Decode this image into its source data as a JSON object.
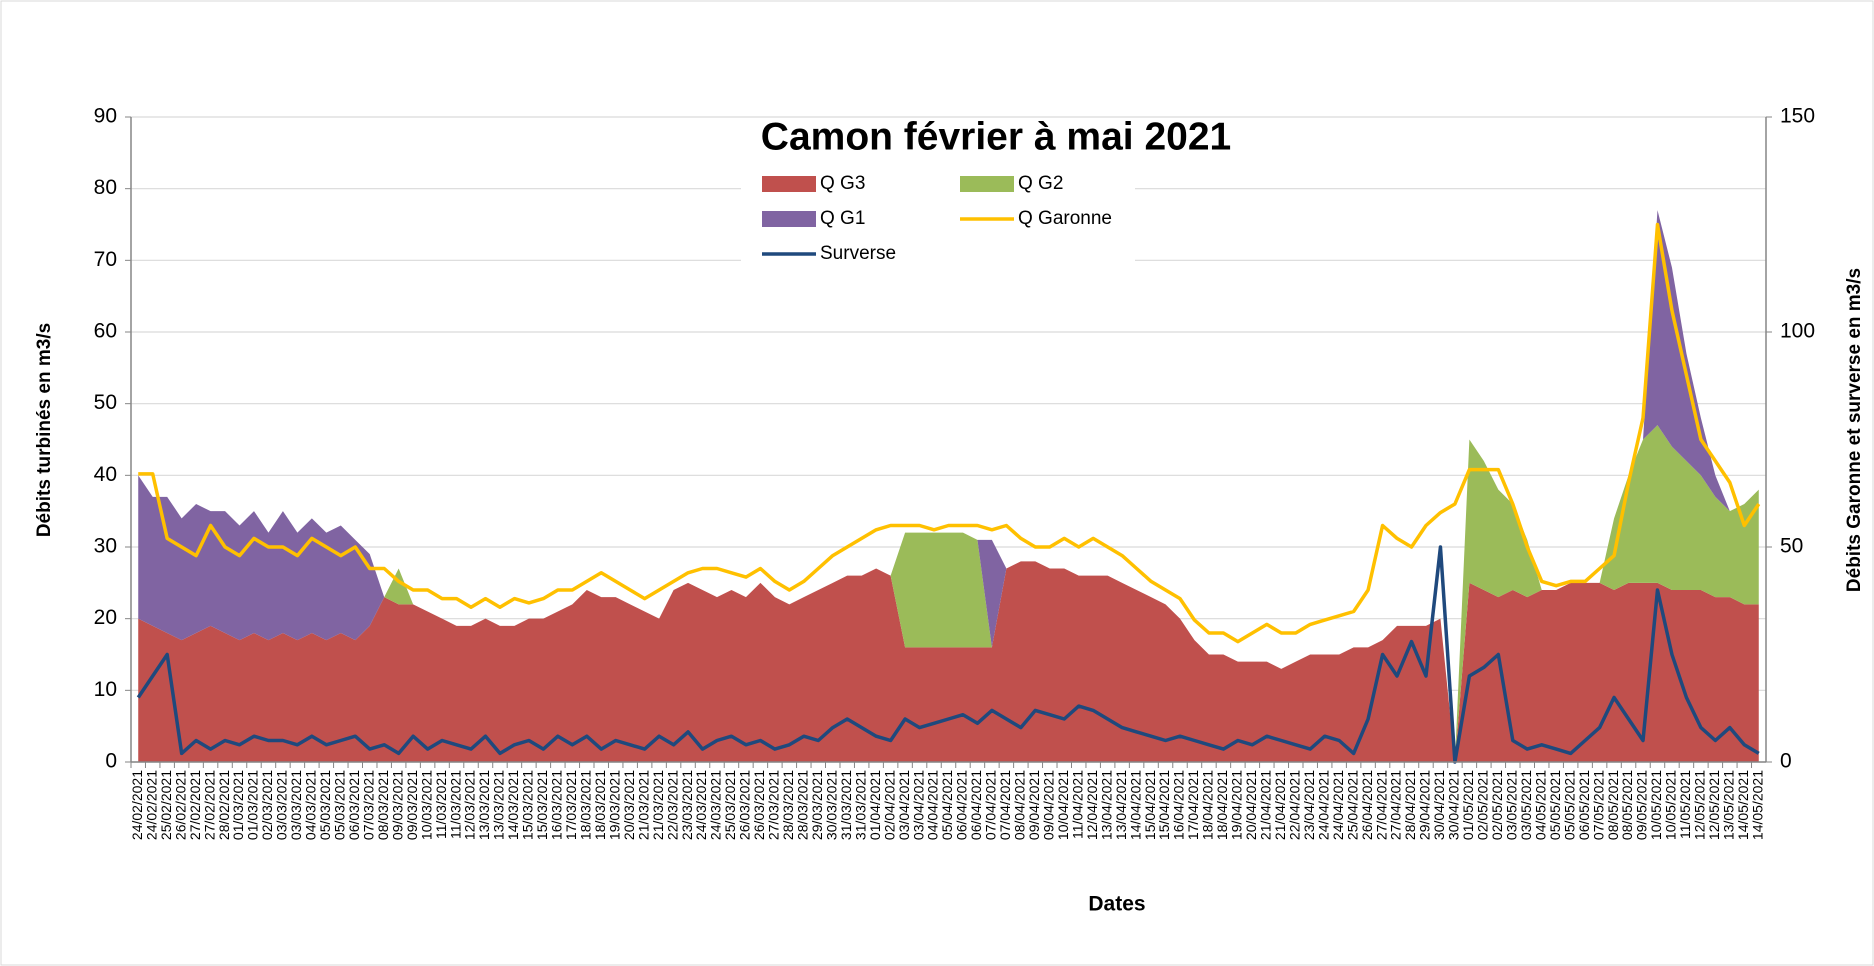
{
  "chart_data": {
    "type": "stacked-area-line",
    "title": "Camon février à mai 2021",
    "x_label": "Dates",
    "y_label": "Débits turbinés en m3/s",
    "y2_label": "Débits Garonne et surverse en m3/s",
    "categories": [
      "24/02/2021",
      "24/02/2021",
      "25/02/2021",
      "26/02/2021",
      "27/02/2021",
      "27/02/2021",
      "28/02/2021",
      "01/03/2021",
      "01/03/2021",
      "02/03/2021",
      "03/03/2021",
      "03/03/2021",
      "04/03/2021",
      "05/03/2021",
      "05/03/2021",
      "06/03/2021",
      "07/03/2021",
      "08/03/2021",
      "09/03/2021",
      "09/03/2021",
      "10/03/2021",
      "11/03/2021",
      "11/03/2021",
      "12/03/2021",
      "13/03/2021",
      "13/03/2021",
      "14/03/2021",
      "15/03/2021",
      "15/03/2021",
      "16/03/2021",
      "17/03/2021",
      "18/03/2021",
      "18/03/2021",
      "19/03/2021",
      "20/03/2021",
      "21/03/2021",
      "21/03/2021",
      "22/03/2021",
      "23/03/2021",
      "24/03/2021",
      "24/03/2021",
      "25/03/2021",
      "26/03/2021",
      "26/03/2021",
      "27/03/2021",
      "28/03/2021",
      "28/03/2021",
      "29/03/2021",
      "30/03/2021",
      "31/03/2021",
      "31/03/2021",
      "01/04/2021",
      "02/04/2021",
      "03/04/2021",
      "03/04/2021",
      "04/04/2021",
      "05/04/2021",
      "06/04/2021",
      "06/04/2021",
      "07/04/2021",
      "07/04/2021",
      "08/04/2021",
      "09/04/2021",
      "09/04/2021",
      "10/04/2021",
      "11/04/2021",
      "12/04/2021",
      "13/04/2021",
      "13/04/2021",
      "14/04/2021",
      "15/04/2021",
      "15/04/2021",
      "16/04/2021",
      "17/04/2021",
      "18/04/2021",
      "18/04/2021",
      "19/04/2021",
      "20/04/2021",
      "21/04/2021",
      "21/04/2021",
      "22/04/2021",
      "23/04/2021",
      "24/04/2021",
      "24/04/2021",
      "25/04/2021",
      "26/04/2021",
      "27/04/2021",
      "27/04/2021",
      "28/04/2021",
      "29/04/2021",
      "30/04/2021",
      "30/04/2021",
      "01/05/2021",
      "02/05/2021",
      "02/05/2021",
      "03/05/2021",
      "03/05/2021",
      "04/05/2021",
      "05/05/2021",
      "05/05/2021",
      "06/05/2021",
      "07/05/2021",
      "08/05/2021",
      "08/05/2021",
      "09/05/2021",
      "10/05/2021",
      "10/05/2021",
      "11/05/2021",
      "12/05/2021",
      "12/05/2021",
      "13/05/2021",
      "14/05/2021",
      "14/05/2021"
    ],
    "series": [
      {
        "name": "Q G3",
        "color": "#c0504d",
        "kind": "area",
        "values": [
          20,
          19,
          18,
          17,
          18,
          19,
          18,
          17,
          18,
          17,
          18,
          17,
          18,
          17,
          18,
          17,
          19,
          23,
          22,
          22,
          21,
          20,
          19,
          19,
          20,
          19,
          19,
          20,
          20,
          21,
          22,
          24,
          23,
          23,
          22,
          21,
          20,
          24,
          25,
          24,
          23,
          24,
          23,
          25,
          23,
          22,
          23,
          24,
          25,
          26,
          26,
          27,
          26,
          16,
          16,
          16,
          16,
          16,
          16,
          16,
          27,
          28,
          28,
          27,
          27,
          26,
          26,
          26,
          25,
          24,
          23,
          22,
          20,
          17,
          15,
          15,
          14,
          14,
          14,
          13,
          14,
          15,
          15,
          15,
          16,
          16,
          17,
          19,
          19,
          19,
          20,
          0,
          25,
          24,
          23,
          24,
          23,
          24,
          24,
          25,
          25,
          25,
          24,
          25,
          25,
          25,
          24,
          24,
          24,
          23,
          23,
          22,
          22
        ]
      },
      {
        "name": "Q G2",
        "color": "#9bbb59",
        "kind": "area",
        "values": [
          0,
          0,
          0,
          0,
          0,
          0,
          0,
          0,
          0,
          0,
          0,
          0,
          0,
          0,
          0,
          0,
          0,
          0,
          5,
          0,
          0,
          0,
          0,
          0,
          0,
          0,
          0,
          0,
          0,
          0,
          0,
          0,
          0,
          0,
          0,
          0,
          0,
          0,
          0,
          0,
          0,
          0,
          0,
          0,
          0,
          0,
          0,
          0,
          0,
          0,
          0,
          0,
          0,
          16,
          16,
          16,
          16,
          16,
          15,
          0,
          0,
          0,
          0,
          0,
          0,
          0,
          0,
          0,
          0,
          0,
          0,
          0,
          0,
          0,
          0,
          0,
          0,
          0,
          0,
          0,
          0,
          0,
          0,
          0,
          0,
          0,
          0,
          0,
          0,
          0,
          0,
          0,
          20,
          18,
          15,
          12,
          8,
          0,
          0,
          0,
          0,
          0,
          10,
          15,
          20,
          22,
          20,
          18,
          16,
          14,
          12,
          14,
          16
        ]
      },
      {
        "name": "Q G1",
        "color": "#8064a2",
        "kind": "area",
        "values": [
          20,
          18,
          19,
          17,
          18,
          16,
          17,
          16,
          17,
          15,
          17,
          15,
          16,
          15,
          15,
          14,
          10,
          0,
          0,
          0,
          0,
          0,
          0,
          0,
          0,
          0,
          0,
          0,
          0,
          0,
          0,
          0,
          0,
          0,
          0,
          0,
          0,
          0,
          0,
          0,
          0,
          0,
          0,
          0,
          0,
          0,
          0,
          0,
          0,
          0,
          0,
          0,
          0,
          0,
          0,
          0,
          0,
          0,
          0,
          15,
          0,
          0,
          0,
          0,
          0,
          0,
          0,
          0,
          0,
          0,
          0,
          0,
          0,
          0,
          0,
          0,
          0,
          0,
          0,
          0,
          0,
          0,
          0,
          0,
          0,
          0,
          0,
          0,
          0,
          0,
          0,
          0,
          0,
          0,
          0,
          0,
          0,
          0,
          0,
          0,
          0,
          0,
          0,
          0,
          0,
          30,
          25,
          15,
          8,
          3,
          0,
          0,
          0
        ]
      },
      {
        "name": "Q Garonne",
        "color": "#ffc000",
        "kind": "line",
        "axis": "y2",
        "values": [
          67,
          67,
          52,
          50,
          48,
          55,
          50,
          48,
          52,
          50,
          50,
          48,
          52,
          50,
          48,
          50,
          45,
          45,
          42,
          40,
          40,
          38,
          38,
          36,
          38,
          36,
          38,
          37,
          38,
          40,
          40,
          42,
          44,
          42,
          40,
          38,
          40,
          42,
          44,
          45,
          45,
          44,
          43,
          45,
          42,
          40,
          42,
          45,
          48,
          50,
          52,
          54,
          55,
          55,
          55,
          54,
          55,
          55,
          55,
          54,
          55,
          52,
          50,
          50,
          52,
          50,
          52,
          50,
          48,
          45,
          42,
          40,
          38,
          33,
          30,
          30,
          28,
          30,
          32,
          30,
          30,
          32,
          33,
          34,
          35,
          40,
          55,
          52,
          50,
          55,
          58,
          60,
          68,
          68,
          68,
          60,
          50,
          42,
          41,
          42,
          42,
          45,
          48,
          65,
          80,
          125,
          105,
          90,
          75,
          70,
          65,
          55,
          60
        ]
      },
      {
        "name": "Surverse",
        "color": "#1f497d",
        "kind": "line",
        "axis": "y2",
        "values": [
          15,
          20,
          25,
          2,
          5,
          3,
          5,
          4,
          6,
          5,
          5,
          4,
          6,
          4,
          5,
          6,
          3,
          4,
          2,
          6,
          3,
          5,
          4,
          3,
          6,
          2,
          4,
          5,
          3,
          6,
          4,
          6,
          3,
          5,
          4,
          3,
          6,
          4,
          7,
          3,
          5,
          6,
          4,
          5,
          3,
          4,
          6,
          5,
          8,
          10,
          8,
          6,
          5,
          10,
          8,
          9,
          10,
          11,
          9,
          12,
          10,
          8,
          12,
          11,
          10,
          13,
          12,
          10,
          8,
          7,
          6,
          5,
          6,
          5,
          4,
          3,
          5,
          4,
          6,
          5,
          4,
          3,
          6,
          5,
          2,
          10,
          25,
          20,
          28,
          20,
          50,
          0,
          20,
          22,
          25,
          5,
          3,
          4,
          3,
          2,
          5,
          8,
          15,
          10,
          5,
          40,
          25,
          15,
          8,
          5,
          8,
          4,
          2
        ]
      }
    ],
    "ylim": [
      0,
      90
    ],
    "yticks": [
      0,
      10,
      20,
      30,
      40,
      50,
      60,
      70,
      80,
      90
    ],
    "y2lim": [
      0,
      150
    ],
    "y2ticks": [
      0,
      50,
      100,
      150
    ],
    "grid": true,
    "legend": "top"
  }
}
